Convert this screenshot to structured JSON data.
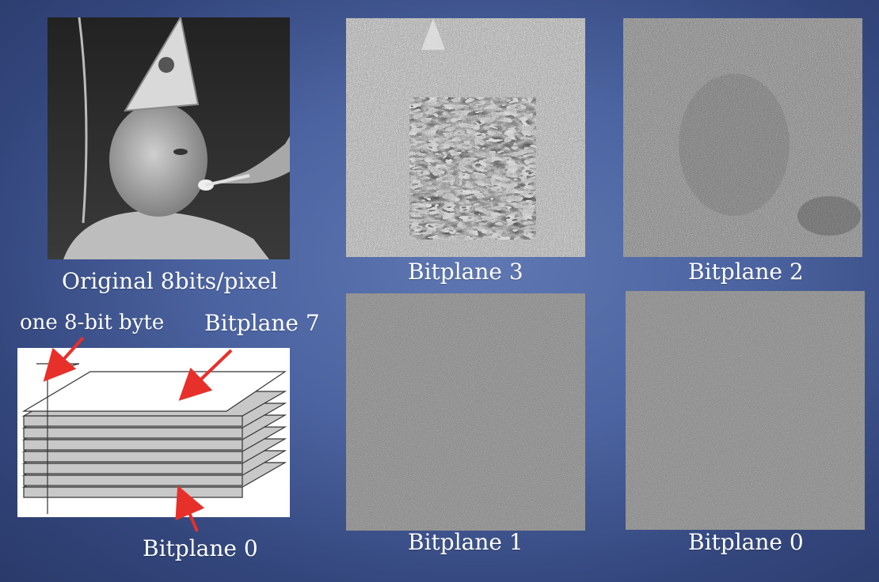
{
  "slide": {
    "original_caption": "Original 8bits/pixel",
    "byte_label": "one 8-bit byte",
    "bitplane7_label": "Bitplane 7",
    "bitplane0_label_diagram": "Bitplane 0",
    "bitplane3_caption": "Bitplane 3",
    "bitplane2_caption": "Bitplane 2",
    "bitplane1_caption": "Bitplane 1",
    "bitplane0_caption": "Bitplane 0"
  },
  "colors": {
    "background": "#4b63a0",
    "arrow": "#e8302a",
    "text": "#ffffff",
    "plane_fill": "#c8c8c8"
  }
}
